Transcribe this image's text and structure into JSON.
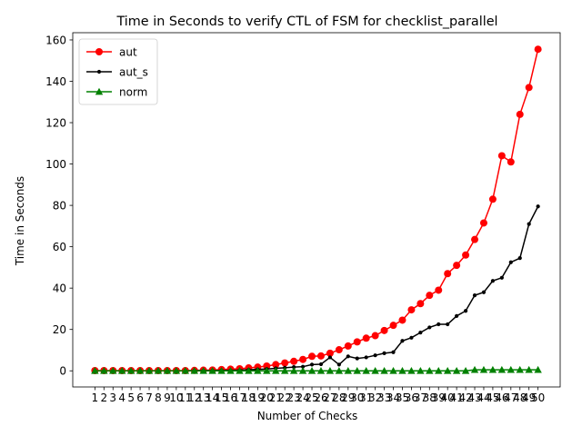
{
  "chart_data": {
    "type": "line",
    "title": "Time in Seconds to verify CTL of FSM for checklist_parallel",
    "xlabel": "Number of Checks",
    "ylabel": "Time in Seconds",
    "x": [
      1,
      2,
      3,
      4,
      5,
      6,
      7,
      8,
      9,
      10,
      11,
      12,
      13,
      14,
      15,
      16,
      17,
      18,
      19,
      20,
      21,
      22,
      23,
      24,
      25,
      26,
      27,
      28,
      29,
      30,
      31,
      32,
      33,
      34,
      35,
      36,
      37,
      38,
      39,
      40,
      41,
      42,
      43,
      44,
      45,
      46,
      47,
      48,
      49,
      50
    ],
    "xlim": [
      -1.45,
      52.45
    ],
    "ylim": [
      -7.8,
      163.5
    ],
    "yticks": [
      0,
      20,
      40,
      60,
      80,
      100,
      120,
      140,
      160
    ],
    "grid": false,
    "legend": "top-left",
    "series": [
      {
        "name": "aut",
        "color": "#ff0000",
        "marker": "circle",
        "values": [
          0.1,
          0.1,
          0.1,
          0.1,
          0.1,
          0.1,
          0.1,
          0.1,
          0.1,
          0.1,
          0.1,
          0.2,
          0.3,
          0.4,
          0.6,
          0.8,
          1.0,
          1.4,
          1.8,
          2.3,
          3.0,
          3.8,
          4.6,
          5.5,
          7.0,
          7.2,
          8.5,
          10.2,
          12.0,
          14.0,
          15.8,
          17.0,
          19.5,
          22.0,
          24.5,
          29.5,
          32.5,
          36.5,
          39.0,
          47.0,
          51.0,
          56.0,
          63.5,
          71.5,
          83.0,
          104.0,
          101.0,
          124.0,
          137.0,
          155.5
        ]
      },
      {
        "name": "aut_s",
        "color": "#000000",
        "marker": "dot",
        "values": [
          0.0,
          0.0,
          0.0,
          0.0,
          0.0,
          0.0,
          0.0,
          0.0,
          0.0,
          0.0,
          0.0,
          0.1,
          0.1,
          0.1,
          0.2,
          0.2,
          0.3,
          0.5,
          0.7,
          0.9,
          1.2,
          1.5,
          1.8,
          2.0,
          3.0,
          3.2,
          6.5,
          3.0,
          7.0,
          6.0,
          6.5,
          7.5,
          8.5,
          9.0,
          14.5,
          16.0,
          18.5,
          21.0,
          22.5,
          22.5,
          26.5,
          29.0,
          36.5,
          38.0,
          43.5,
          45.0,
          52.5,
          54.5,
          71.0,
          79.5
        ]
      },
      {
        "name": "norm",
        "color": "#008000",
        "marker": "triangle",
        "values": [
          0.0,
          0.0,
          0.0,
          0.0,
          0.0,
          0.0,
          0.0,
          0.0,
          0.0,
          0.0,
          0.0,
          0.0,
          0.0,
          0.0,
          0.0,
          0.0,
          0.0,
          0.0,
          0.0,
          0.0,
          0.0,
          0.0,
          0.0,
          0.0,
          0.0,
          0.0,
          0.0,
          0.0,
          0.0,
          0.0,
          0.0,
          0.0,
          0.0,
          0.0,
          0.0,
          0.0,
          0.0,
          0.0,
          0.0,
          0.0,
          0.0,
          0.0,
          0.5,
          0.5,
          0.5,
          0.5,
          0.5,
          0.5,
          0.5,
          0.5
        ]
      }
    ]
  }
}
